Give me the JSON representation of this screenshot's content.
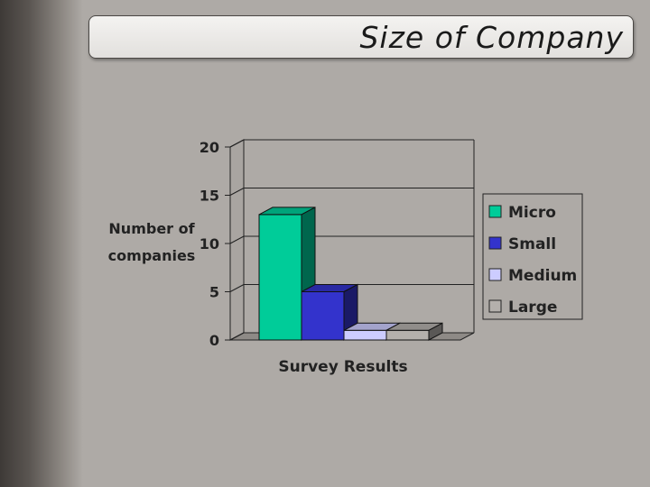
{
  "slide": {
    "title": "Size of Company"
  },
  "colors": {
    "background": "#aeaaa6",
    "plot_back_wall": "#aeaaa6"
  },
  "chart_data": {
    "type": "bar",
    "title": "Size of Company",
    "xlabel": "Survey Results",
    "ylabel_lines": [
      "Number of",
      "companies"
    ],
    "ylim": [
      0,
      20
    ],
    "yticks": [
      0,
      5,
      10,
      15,
      20
    ],
    "grid": true,
    "legend_position": "right",
    "categories": [
      "Survey Results"
    ],
    "series": [
      {
        "name": "Micro",
        "values": [
          13
        ],
        "color": "#00cc99"
      },
      {
        "name": "Small",
        "values": [
          5
        ],
        "color": "#3333cc"
      },
      {
        "name": "Medium",
        "values": [
          1
        ],
        "color": "#ccccff"
      },
      {
        "name": "Large",
        "values": [
          1
        ],
        "color": "#b4b0ac"
      }
    ]
  }
}
